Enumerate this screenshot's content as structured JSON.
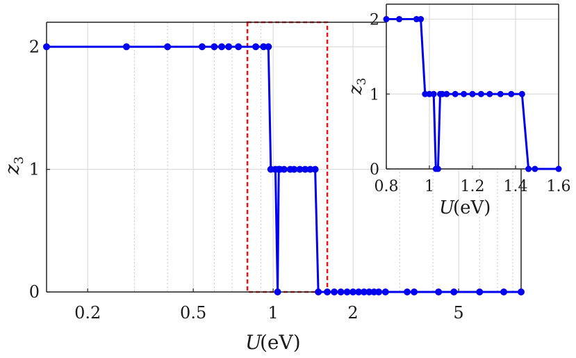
{
  "chart_data": [
    {
      "type": "line",
      "xscale": "log",
      "xlabel": "U(eV)",
      "ylabel": "z3",
      "xlim": [
        0.14,
        8.6
      ],
      "ylim": [
        0,
        2.2
      ],
      "xticks": [
        0.2,
        0.5,
        1,
        2,
        5
      ],
      "xtick_labels": [
        "0.2",
        "0.5",
        "1",
        "2",
        "5"
      ],
      "yticks": [
        0,
        1,
        2
      ],
      "ytick_labels": [
        "0",
        "1",
        "2"
      ],
      "grid": true,
      "color": "#0000ee",
      "highlight_box": {
        "x": [
          0.8,
          1.6
        ],
        "y": [
          0,
          2.2
        ],
        "color": "#ee1111"
      },
      "series": [
        {
          "x": [
            0.14,
            0.28,
            0.4,
            0.54,
            0.6,
            0.64,
            0.68,
            0.74,
            0.86,
            0.92,
            0.96,
            0.98,
            1.02,
            1.04,
            1.05,
            1.06,
            1.1,
            1.16,
            1.2,
            1.26,
            1.32,
            1.38,
            1.44,
            1.48,
            1.6,
            1.7,
            1.8,
            1.9,
            2.0,
            2.1,
            2.2,
            2.3,
            2.4,
            2.5,
            2.65,
            3.2,
            3.4,
            4.2,
            4.8,
            6.0,
            7.4,
            8.6
          ],
          "y": [
            2,
            2,
            2,
            2,
            2,
            2,
            2,
            2,
            2,
            2,
            2,
            1,
            1,
            0,
            1,
            1,
            1,
            1,
            1,
            1,
            1,
            1,
            1,
            0,
            0,
            0,
            0,
            0,
            0,
            0,
            0,
            0,
            0,
            0,
            0,
            0,
            0,
            0,
            0,
            0,
            0,
            0
          ]
        }
      ]
    },
    {
      "type": "line",
      "xlabel": "U(eV)",
      "ylabel": "z3",
      "xlim": [
        0.8,
        1.6
      ],
      "ylim": [
        0,
        2.2
      ],
      "xticks": [
        0.8,
        1.0,
        1.2,
        1.4,
        1.6
      ],
      "xtick_labels": [
        "0.8",
        "1",
        "1.2",
        "1.4",
        "1.6"
      ],
      "yticks": [
        0,
        1,
        2
      ],
      "ytick_labels": [
        "0",
        "1",
        "2"
      ],
      "grid": true,
      "color": "#0000ee",
      "series": [
        {
          "x": [
            0.8,
            0.86,
            0.94,
            0.96,
            0.98,
            1.0,
            1.02,
            1.03,
            1.04,
            1.05,
            1.06,
            1.08,
            1.12,
            1.16,
            1.2,
            1.24,
            1.28,
            1.33,
            1.38,
            1.43,
            1.46,
            1.49,
            1.6
          ],
          "y": [
            2,
            2,
            2,
            2,
            1,
            1,
            1,
            0,
            0,
            1,
            1,
            1,
            1,
            1,
            1,
            1,
            1,
            1,
            1,
            1,
            0,
            0,
            0
          ]
        }
      ]
    }
  ]
}
